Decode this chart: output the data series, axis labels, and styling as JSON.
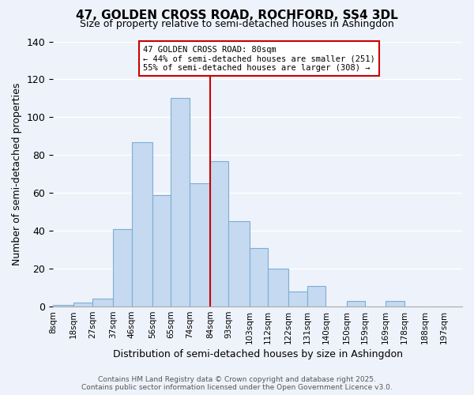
{
  "title": "47, GOLDEN CROSS ROAD, ROCHFORD, SS4 3DL",
  "subtitle": "Size of property relative to semi-detached houses in Ashingdon",
  "xlabel": "Distribution of semi-detached houses by size in Ashingdon",
  "ylabel": "Number of semi-detached properties",
  "bar_labels": [
    "8sqm",
    "18sqm",
    "27sqm",
    "37sqm",
    "46sqm",
    "56sqm",
    "65sqm",
    "74sqm",
    "84sqm",
    "93sqm",
    "103sqm",
    "112sqm",
    "122sqm",
    "131sqm",
    "140sqm",
    "150sqm",
    "159sqm",
    "169sqm",
    "178sqm",
    "188sqm",
    "197sqm"
  ],
  "bar_values": [
    1,
    2,
    4,
    41,
    87,
    59,
    110,
    65,
    77,
    45,
    31,
    20,
    8,
    11,
    0,
    3,
    0,
    3,
    0,
    0,
    0
  ],
  "bar_color": "#c5d9f1",
  "bar_edge_color": "#7bafd4",
  "vline_color": "#cc0000",
  "annotation_title": "47 GOLDEN CROSS ROAD: 80sqm",
  "annotation_line1": "← 44% of semi-detached houses are smaller (251)",
  "annotation_line2": "55% of semi-detached houses are larger (308) →",
  "annotation_box_color": "#ffffff",
  "annotation_box_edge": "#cc0000",
  "ylim": [
    0,
    140
  ],
  "footer1": "Contains HM Land Registry data © Crown copyright and database right 2025.",
  "footer2": "Contains public sector information licensed under the Open Government Licence v3.0.",
  "bg_color": "#eef2fb",
  "grid_color": "#ffffff",
  "bin_edges": [
    8,
    18,
    27,
    37,
    46,
    56,
    65,
    74,
    84,
    93,
    103,
    112,
    122,
    131,
    140,
    150,
    159,
    169,
    178,
    188,
    197,
    206
  ],
  "vline_x": 84
}
